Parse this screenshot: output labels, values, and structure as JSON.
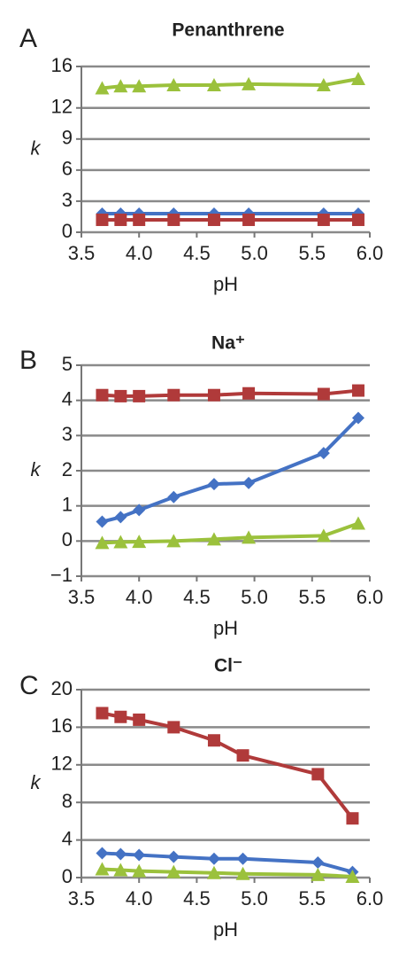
{
  "chart_data": [
    {
      "type": "line",
      "panel": "A",
      "title": "Penanthrene",
      "ylabel": "k",
      "xlabel": "pH",
      "x": [
        3.68,
        3.84,
        4.0,
        4.3,
        4.65,
        4.95,
        5.6,
        5.9
      ],
      "series": [
        {
          "color": "#4472c4",
          "marker": "diamond",
          "values": [
            1.8,
            1.8,
            1.8,
            1.8,
            1.8,
            1.8,
            1.8,
            1.8
          ]
        },
        {
          "color": "#b03a3a",
          "marker": "square",
          "values": [
            1.2,
            1.2,
            1.2,
            1.2,
            1.2,
            1.2,
            1.2,
            1.2
          ]
        },
        {
          "color": "#9bc13c",
          "marker": "triangle",
          "values": [
            13.9,
            14.1,
            14.1,
            14.2,
            14.2,
            14.3,
            14.2,
            14.8
          ]
        }
      ],
      "xlim": [
        3.5,
        6.0
      ],
      "xticks": [
        3.5,
        {
          "value": 4,
          "label": "4.0"
        },
        4.5,
        {
          "value": 5,
          "label": "5.0"
        },
        5.5,
        {
          "value": 6,
          "label": "6.0"
        }
      ],
      "ylim": [
        0,
        16
      ],
      "yticks": [
        0,
        3,
        6,
        9,
        12,
        16
      ],
      "grid": true
    },
    {
      "type": "line",
      "panel": "B",
      "title": "Na⁺",
      "ylabel": "k",
      "xlabel": "pH",
      "x": [
        3.68,
        3.84,
        4.0,
        4.3,
        4.65,
        4.95,
        5.6,
        5.9
      ],
      "series": [
        {
          "color": "#4472c4",
          "marker": "diamond",
          "values": [
            0.55,
            0.68,
            0.88,
            1.25,
            1.62,
            1.65,
            2.5,
            3.5
          ]
        },
        {
          "color": "#b03a3a",
          "marker": "square",
          "values": [
            4.15,
            4.12,
            4.12,
            4.15,
            4.15,
            4.2,
            4.18,
            4.28
          ]
        },
        {
          "color": "#9bc13c",
          "marker": "triangle",
          "values": [
            -0.05,
            -0.03,
            -0.02,
            0.0,
            0.05,
            0.1,
            0.15,
            0.5
          ]
        }
      ],
      "xlim": [
        3.5,
        6.0
      ],
      "xticks": [
        3.5,
        {
          "value": 4,
          "label": "4.0"
        },
        4.5,
        {
          "value": 5,
          "label": "5.0"
        },
        5.5,
        {
          "value": 6,
          "label": "6.0"
        }
      ],
      "ylim": [
        -1,
        5
      ],
      "yticks": [
        {
          "value": -1,
          "label": "−1"
        },
        0,
        1,
        2,
        3,
        4,
        5
      ],
      "grid": true
    },
    {
      "type": "line",
      "panel": "C",
      "title": "Cl⁻",
      "ylabel": "k",
      "xlabel": "pH",
      "x": [
        3.68,
        3.84,
        4.0,
        4.3,
        4.65,
        4.9,
        5.55,
        5.85
      ],
      "series": [
        {
          "color": "#4472c4",
          "marker": "diamond",
          "values": [
            2.6,
            2.5,
            2.4,
            2.2,
            2.0,
            2.0,
            1.6,
            0.6
          ]
        },
        {
          "color": "#b03a3a",
          "marker": "square",
          "values": [
            17.5,
            17.1,
            16.8,
            16.0,
            14.6,
            13.0,
            11.0,
            6.3
          ]
        },
        {
          "color": "#9bc13c",
          "marker": "triangle",
          "values": [
            0.9,
            0.8,
            0.7,
            0.6,
            0.5,
            0.4,
            0.3,
            0.1
          ]
        }
      ],
      "xlim": [
        3.5,
        6.0
      ],
      "xticks": [
        3.5,
        {
          "value": 4,
          "label": "4.0"
        },
        4.5,
        {
          "value": 5,
          "label": "5.0"
        },
        5.5,
        {
          "value": 6,
          "label": "6.0"
        }
      ],
      "ylim": [
        0,
        20
      ],
      "yticks": [
        0,
        4,
        8,
        12,
        16,
        20
      ],
      "grid": true
    }
  ]
}
